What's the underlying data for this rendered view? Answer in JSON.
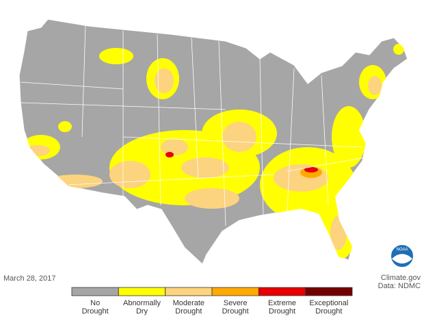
{
  "date": "March 28, 2017",
  "credit": {
    "source": "Climate.gov",
    "data": "Data: NDMC"
  },
  "logo": "NOAA",
  "legend": {
    "categories": [
      {
        "label": [
          "No",
          "Drought"
        ],
        "color": "#a6a6a6"
      },
      {
        "label": [
          "Abnormally",
          "Dry"
        ],
        "color": "#ffff00"
      },
      {
        "label": [
          "Moderate",
          "Drought"
        ],
        "color": "#fcd37f"
      },
      {
        "label": [
          "Severe",
          "Drought"
        ],
        "color": "#ffaa00"
      },
      {
        "label": [
          "Extreme",
          "Drought"
        ],
        "color": "#e60000"
      },
      {
        "label": [
          "Exceptional",
          "Drought"
        ],
        "color": "#730000"
      }
    ]
  }
}
